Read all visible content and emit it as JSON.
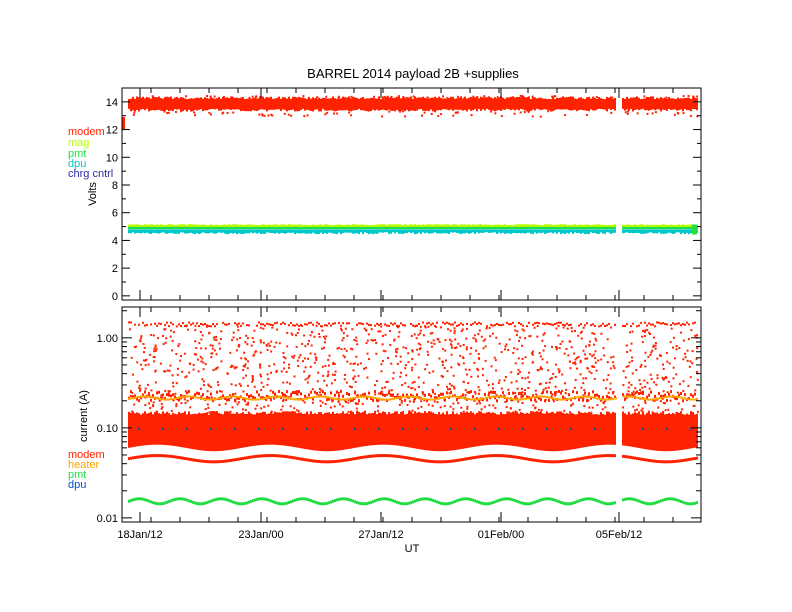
{
  "chart_data": [
    {
      "type": "scatter",
      "title": "BARREL 2014 payload 2B +supplies",
      "ylabel": "Volts",
      "ylim": [
        -0.3,
        15
      ],
      "yticks": [
        0,
        2,
        4,
        6,
        8,
        10,
        12,
        14
      ],
      "legend": [
        {
          "name": "modem",
          "color": "#ff2200"
        },
        {
          "name": "mag",
          "color": "#b8ff00"
        },
        {
          "name": "pmt",
          "color": "#22dd44"
        },
        {
          "name": "dpu",
          "color": "#00c8c8"
        },
        {
          "name": "chrg cntrl",
          "color": "#2a2aa0"
        }
      ],
      "legend_position": "left",
      "series": [
        {
          "name": "modem",
          "color": "#ff2200",
          "y_center": 13.9,
          "y_spread": 0.9
        },
        {
          "name": "mag",
          "color": "#b8ff00",
          "y_center": 5.0,
          "y_spread": 0.3
        },
        {
          "name": "pmt",
          "color": "#22dd44",
          "y_center": 4.9,
          "y_spread": 0.3
        },
        {
          "name": "dpu",
          "color": "#00c8c8",
          "y_center": 4.7,
          "y_spread": 0.25
        }
      ]
    },
    {
      "type": "scatter",
      "ylabel": "current (A)",
      "xlabel": "UT",
      "yscale": "log",
      "ylim": [
        0.009,
        2.2
      ],
      "yticks": [
        0.01,
        0.1,
        1.0
      ],
      "ytick_labels": [
        "0.01",
        "0.10",
        "1.00"
      ],
      "xticks": [
        "18Jan/12",
        "23Jan/00",
        "27Jan/12",
        "01Feb/00",
        "05Feb/12"
      ],
      "legend": [
        {
          "name": "modem",
          "color": "#ff2200"
        },
        {
          "name": "heater",
          "color": "#ffa500"
        },
        {
          "name": "pmt",
          "color": "#22dd44"
        },
        {
          "name": "dpu",
          "color": "#0050c8"
        }
      ],
      "legend_position": "left",
      "series": [
        {
          "name": "modem",
          "color": "#ff2200",
          "y_low": 0.045,
          "y_high": 0.14,
          "y_upper_band": 1.45,
          "y_mid_band": 0.23
        },
        {
          "name": "heater",
          "color": "#ffa500",
          "y_center": 0.22
        },
        {
          "name": "pmt",
          "color": "#22dd44",
          "y_center": 0.0155,
          "oscillation": 0.001
        },
        {
          "name": "dpu",
          "color": "#0050c8",
          "y_center": 0.1
        }
      ]
    }
  ]
}
